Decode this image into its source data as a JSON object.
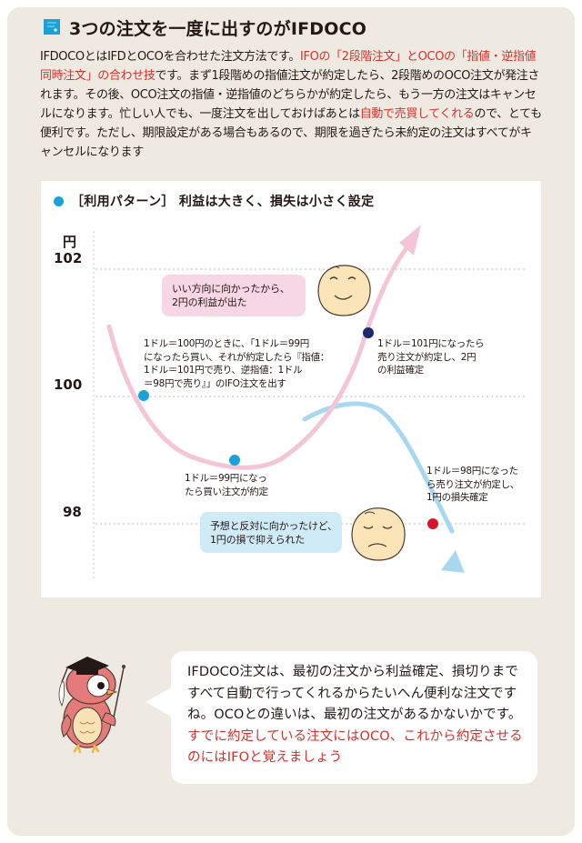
{
  "title": {
    "icon": "document-icon",
    "text": "3つの注文を一度に出すのがIFDOCO"
  },
  "intro": {
    "part1": "IFDOCOとはIFDとOCOを合わせた注文方法です。",
    "part2_red": "IFOの「2段階注文」とOCOの「指値・逆指値同時注文」の合わせ技",
    "part3": "です。まず1段階めの指値注文が約定したら、2段階めのOCO注文が発注されます。その後、OCO注文の指値・逆指値のどちらかが約定したら、もう一方の注文はキャンセルになります。忙しい人でも、一度注文を出しておけばあとは",
    "part4_red": "自動で売買してくれる",
    "part5": "ので、とても便利です。ただし、期限設定がある場合もあるので、期限を過ぎたら未約定の注文はすべてがキャンセルになります"
  },
  "chart": {
    "header": "［利用パターン］ 利益は大きく、損失は小さく設定",
    "y_unit": "円",
    "ticks": [
      {
        "label": "102",
        "value": 102
      },
      {
        "label": "100",
        "value": 100
      },
      {
        "label": "98",
        "value": 98
      }
    ],
    "bubble_profit": [
      "いい方向に向かったから、",
      "2円の利益が出た"
    ],
    "bubble_loss": [
      "予想と反対に向かったけど、",
      "1円の損で抑えられた"
    ],
    "note_entry": [
      "1ドル＝100円のときに、「1ドル＝99円",
      "になったら買い、それが約定したら『指値：",
      "1ドル＝101円で売り、逆指値：1ドル",
      "＝98円で売り』」のIFO注文を出す"
    ],
    "note_buy": [
      "1ドル＝99円になっ",
      "たら買い注文が約定"
    ],
    "note_profit": [
      "1ドル＝101円になったら",
      "売り注文が約定し、2円",
      "の利益確定"
    ],
    "note_loss": [
      "1ドル＝98円になった",
      "ら売り注文が約定し、",
      "1円の損失確定"
    ],
    "colors": {
      "pink_curve": "#f3c5d6",
      "blue_curve": "#a8d8f0",
      "marker_blue": "#1ba1d9",
      "marker_navy": "#1d2a6b",
      "marker_red": "#d7152b"
    }
  },
  "chart_data": {
    "type": "line",
    "title": "［利用パターン］ 利益は大きく、損失は小さく設定",
    "ylabel": "円",
    "ylim": [
      97.6,
      102.4
    ],
    "yticks": [
      98,
      100,
      102
    ],
    "grid": "dotted horizontal",
    "series": [
      {
        "name": "",
        "color": "#f3c5d6",
        "points": [
          [
            0,
            100.8
          ],
          [
            1,
            99.0
          ],
          [
            2,
            101.0
          ],
          [
            3,
            102.4
          ]
        ]
      },
      {
        "name": "",
        "color": "#a8d8f0",
        "points": [
          [
            2,
            99.6
          ],
          [
            3,
            98.0
          ],
          [
            3.4,
            97.2
          ]
        ]
      }
    ],
    "markers": [
      {
        "label": "1ドル＝100円",
        "value": 100,
        "color": "#1ba1d9"
      },
      {
        "label": "1ドル＝99円",
        "value": 99,
        "color": "#1ba1d9"
      },
      {
        "label": "1ドル＝101円",
        "value": 101,
        "color": "#1d2a6b"
      },
      {
        "label": "1ドル＝98円",
        "value": 98,
        "color": "#d7152b"
      }
    ]
  },
  "owl": {
    "icon": "owl-mascot-icon",
    "accent": "#d96b6b"
  },
  "speech": {
    "text_black": "IFDOCO注文は、最初の注文から利益確定、損切りまですべて自動で行ってくれるからたいへん便利な注文ですね。OCOとの違いは、最初の注文があるかないかです。",
    "text_red": "すでに約定している注文にはOCO、これから約定させるのにはIFOと覚えましょう"
  }
}
